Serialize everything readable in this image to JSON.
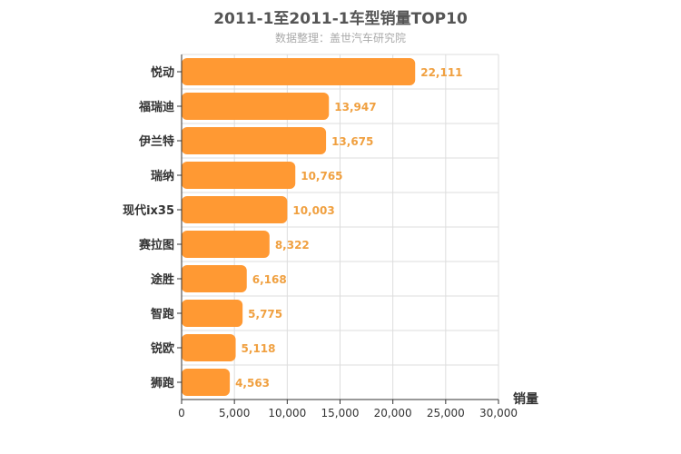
{
  "chart_data": {
    "type": "bar",
    "orientation": "horizontal",
    "title": "2011-1至2011-1车型销量TOP10",
    "subtitle": "数据整理：盖世汽车研究院",
    "xlabel": "销量",
    "ylabel": "",
    "categories": [
      "悦动",
      "福瑞迪",
      "伊兰特",
      "瑞纳",
      "现代ix35",
      "赛拉图",
      "途胜",
      "智跑",
      "锐欧",
      "狮跑"
    ],
    "values": [
      22111,
      13947,
      13675,
      10765,
      10003,
      8322,
      6168,
      5775,
      5118,
      4563
    ],
    "value_labels": [
      "22,111",
      "13,947",
      "13,675",
      "10,765",
      "10,003",
      "8,322",
      "6,168",
      "5,775",
      "5,118",
      "4,563"
    ],
    "xlim": [
      0,
      30000
    ],
    "xticks": [
      0,
      5000,
      10000,
      15000,
      20000,
      25000,
      30000
    ],
    "xtick_labels": [
      "0",
      "5,000",
      "10,000",
      "15,000",
      "20,000",
      "25,000",
      "30,000"
    ],
    "grid": true,
    "bar_color": "#ff9933",
    "label_color": "#f0a040"
  }
}
